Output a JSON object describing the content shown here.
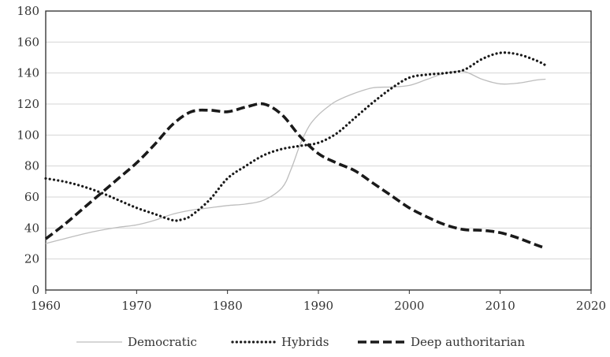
{
  "chart_data": {
    "type": "line",
    "title": "",
    "xlabel": "",
    "ylabel": "",
    "xlim": [
      1960,
      2020
    ],
    "ylim": [
      0,
      180
    ],
    "x_ticks": [
      1960,
      1970,
      1980,
      1990,
      2000,
      2010,
      2020
    ],
    "y_ticks": [
      0,
      20,
      40,
      60,
      80,
      100,
      120,
      140,
      160,
      180
    ],
    "grid": "horizontal",
    "legend_position": "bottom",
    "series": [
      {
        "name": "Democratic",
        "style": "solid-thin",
        "color": "#bdbdbd",
        "points": [
          [
            1960,
            30
          ],
          [
            1962,
            33
          ],
          [
            1964,
            36
          ],
          [
            1966,
            38.5
          ],
          [
            1968,
            40.5
          ],
          [
            1970,
            42
          ],
          [
            1972,
            45
          ],
          [
            1974,
            49
          ],
          [
            1976,
            51.5
          ],
          [
            1978,
            53
          ],
          [
            1980,
            54.5
          ],
          [
            1982,
            55.5
          ],
          [
            1984,
            58
          ],
          [
            1986,
            66
          ],
          [
            1987,
            78
          ],
          [
            1988,
            94
          ],
          [
            1989,
            106
          ],
          [
            1990,
            113
          ],
          [
            1991,
            118
          ],
          [
            1992,
            122
          ],
          [
            1994,
            127
          ],
          [
            1996,
            130.5
          ],
          [
            1998,
            131
          ],
          [
            2000,
            132
          ],
          [
            2002,
            136
          ],
          [
            2004,
            140
          ],
          [
            2006,
            141
          ],
          [
            2008,
            136
          ],
          [
            2010,
            133
          ],
          [
            2012,
            133.5
          ],
          [
            2014,
            135.5
          ],
          [
            2015,
            136
          ]
        ]
      },
      {
        "name": "Hybrids",
        "style": "dotted",
        "color": "#1a1a1a",
        "points": [
          [
            1960,
            72
          ],
          [
            1962,
            70
          ],
          [
            1964,
            67
          ],
          [
            1966,
            63
          ],
          [
            1968,
            58
          ],
          [
            1970,
            53
          ],
          [
            1972,
            49
          ],
          [
            1974,
            45
          ],
          [
            1975,
            45.5
          ],
          [
            1976,
            48
          ],
          [
            1978,
            58
          ],
          [
            1980,
            72
          ],
          [
            1982,
            80
          ],
          [
            1984,
            87
          ],
          [
            1986,
            91
          ],
          [
            1988,
            93
          ],
          [
            1990,
            95
          ],
          [
            1992,
            101
          ],
          [
            1994,
            111
          ],
          [
            1996,
            121
          ],
          [
            1998,
            130
          ],
          [
            2000,
            137
          ],
          [
            2002,
            139
          ],
          [
            2004,
            140
          ],
          [
            2006,
            142
          ],
          [
            2008,
            149
          ],
          [
            2010,
            153
          ],
          [
            2012,
            152
          ],
          [
            2014,
            148
          ],
          [
            2015,
            145
          ]
        ]
      },
      {
        "name": "Deep authoritarian",
        "style": "dashed",
        "color": "#1a1a1a",
        "points": [
          [
            1960,
            33
          ],
          [
            1962,
            42
          ],
          [
            1964,
            52
          ],
          [
            1966,
            62
          ],
          [
            1968,
            72
          ],
          [
            1970,
            82
          ],
          [
            1972,
            94
          ],
          [
            1974,
            107
          ],
          [
            1976,
            115
          ],
          [
            1978,
            116
          ],
          [
            1980,
            115
          ],
          [
            1982,
            118
          ],
          [
            1984,
            120
          ],
          [
            1986,
            113
          ],
          [
            1988,
            99
          ],
          [
            1990,
            88
          ],
          [
            1992,
            82
          ],
          [
            1994,
            77
          ],
          [
            1996,
            69
          ],
          [
            1998,
            61
          ],
          [
            2000,
            53
          ],
          [
            2002,
            47
          ],
          [
            2004,
            42
          ],
          [
            2006,
            39
          ],
          [
            2008,
            38.5
          ],
          [
            2010,
            37
          ],
          [
            2012,
            33.5
          ],
          [
            2014,
            29
          ],
          [
            2015,
            27
          ]
        ]
      }
    ]
  }
}
